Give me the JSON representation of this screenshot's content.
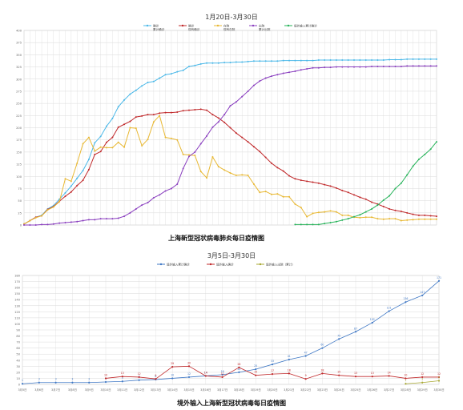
{
  "chart_data": [
    {
      "type": "line",
      "title": "1月20日-3月30日",
      "caption": "上海新型冠状病毒肺炎每日疫情图",
      "legend_position": "top-center",
      "grid": true,
      "ylim": [
        0,
        400
      ],
      "y_ticks": [
        0,
        25,
        50,
        75,
        100,
        125,
        150,
        175,
        200,
        225,
        250,
        275,
        300,
        325,
        350,
        375,
        400
      ],
      "series": [
        {
          "name": "确诊",
          "sub": "累计确诊",
          "color": "#4bb8e8",
          "values": [
            2,
            9,
            16,
            20,
            33,
            40,
            53,
            66,
            80,
            96,
            112,
            135,
            169,
            182,
            203,
            219,
            243,
            257,
            269,
            277,
            286,
            293,
            295,
            302,
            309,
            311,
            315,
            318,
            326,
            328,
            331,
            333,
            333,
            333,
            334,
            334,
            335,
            335,
            336,
            337,
            337,
            337,
            337,
            337,
            338,
            338,
            338,
            338,
            338,
            338,
            339,
            339,
            339,
            339,
            339,
            339,
            339,
            339,
            339,
            339,
            339,
            339,
            340,
            340,
            340,
            341,
            341,
            341,
            341,
            341,
            341
          ]
        },
        {
          "name": "确诊",
          "sub": "现有确诊",
          "color": "#c0282a",
          "values": [
            2,
            9,
            16,
            19,
            32,
            38,
            49,
            59,
            68,
            81,
            92,
            114,
            145,
            151,
            170,
            180,
            201,
            207,
            213,
            222,
            224,
            227,
            227,
            230,
            231,
            231,
            232,
            235,
            236,
            237,
            238,
            236,
            227,
            220,
            211,
            200,
            189,
            180,
            171,
            161,
            151,
            139,
            127,
            118,
            111,
            101,
            95,
            92,
            90,
            88,
            86,
            83,
            80,
            76,
            71,
            67,
            62,
            57,
            53,
            47,
            43,
            38,
            33,
            30,
            28,
            25,
            22,
            20,
            20,
            19,
            18
          ]
        },
        {
          "name": "在院",
          "sub": "现有在院",
          "color": "#e8b833",
          "values": [
            2,
            9,
            15,
            19,
            31,
            37,
            48,
            95,
            90,
            127,
            167,
            180,
            152,
            160,
            159,
            159,
            170,
            160,
            200,
            199,
            163,
            176,
            212,
            225,
            180,
            178,
            175,
            145,
            144,
            143,
            110,
            97,
            140,
            120,
            113,
            107,
            102,
            103,
            102,
            84,
            67,
            69,
            63,
            64,
            58,
            58,
            43,
            36,
            17,
            24,
            26,
            27,
            29,
            27,
            20,
            20,
            16,
            15,
            16,
            16,
            13,
            12,
            13,
            13,
            9,
            10,
            11,
            12,
            12,
            12,
            12
          ]
        },
        {
          "name": "出院",
          "sub": "累计出院",
          "color": "#8a3fbf",
          "values": [
            0,
            0,
            0,
            1,
            1,
            2,
            4,
            5,
            6,
            7,
            9,
            11,
            11,
            13,
            13,
            13,
            14,
            18,
            25,
            33,
            41,
            46,
            56,
            62,
            70,
            75,
            84,
            116,
            141,
            150,
            167,
            183,
            201,
            212,
            227,
            245,
            253,
            264,
            275,
            287,
            296,
            302,
            306,
            309,
            312,
            314,
            316,
            319,
            321,
            323,
            323,
            324,
            324,
            325,
            325,
            325,
            325,
            325,
            325,
            326,
            326,
            326,
            326,
            326,
            326,
            327,
            327,
            327,
            327,
            327,
            327
          ]
        },
        {
          "name": "境外输入累计确诊",
          "color": "#27b35a",
          "values": [
            null,
            null,
            null,
            null,
            null,
            null,
            null,
            null,
            null,
            null,
            null,
            null,
            null,
            null,
            null,
            null,
            null,
            null,
            null,
            null,
            null,
            null,
            null,
            null,
            null,
            null,
            null,
            null,
            null,
            null,
            null,
            null,
            null,
            null,
            null,
            null,
            null,
            null,
            null,
            null,
            null,
            null,
            null,
            null,
            null,
            null,
            1,
            1,
            1,
            1,
            1,
            3,
            5,
            7,
            10,
            13,
            17,
            21,
            27,
            33,
            41,
            51,
            60,
            75,
            86,
            103,
            121,
            135,
            145,
            156,
            171
          ]
        }
      ]
    },
    {
      "type": "line",
      "title": "3月5日-3月30日",
      "caption": "境外输入上海新型冠状病毒每日疫情图",
      "legend_position": "top-center",
      "grid": true,
      "ylim": [
        0,
        180
      ],
      "y_ticks": [
        0,
        10,
        20,
        30,
        40,
        50,
        60,
        70,
        80,
        90,
        100,
        110,
        120,
        130,
        140,
        150,
        160,
        170,
        180
      ],
      "categories": [
        "3月5日",
        "3月6日",
        "3月7日",
        "3月8日",
        "3月9日",
        "3月10日",
        "3月11日",
        "3月12日",
        "3月13日",
        "3月14日",
        "3月15日",
        "3月16日",
        "3月17日",
        "3月18日",
        "3月19日",
        "3月20日",
        "3月21日",
        "3月22日",
        "3月23日",
        "3月24日",
        "3月25日",
        "3月26日",
        "3月27日",
        "3月28日",
        "3月29日",
        "3月30日"
      ],
      "series": [
        {
          "name": "境外输入累计确诊",
          "color": "#3f78c5",
          "values": [
            1,
            3,
            3,
            3,
            3,
            4,
            5,
            7,
            8,
            10,
            12,
            14,
            16,
            20,
            25,
            33,
            41,
            47,
            60,
            75,
            87,
            102,
            121,
            136,
            147,
            171
          ]
        },
        {
          "name": "境外输入确诊",
          "color": "#c0282a",
          "values": [
            null,
            null,
            null,
            null,
            null,
            10,
            13,
            12,
            9,
            29,
            30,
            14,
            12,
            28,
            15,
            17,
            18,
            9,
            18,
            15,
            13,
            13,
            14,
            10,
            12,
            12
          ]
        },
        {
          "name": "境外输入出院（累计）",
          "color": "#a8a832",
          "values": [
            null,
            null,
            null,
            null,
            null,
            null,
            null,
            null,
            null,
            null,
            null,
            null,
            null,
            null,
            null,
            null,
            null,
            null,
            null,
            null,
            null,
            null,
            null,
            1,
            3,
            6
          ]
        }
      ]
    }
  ]
}
